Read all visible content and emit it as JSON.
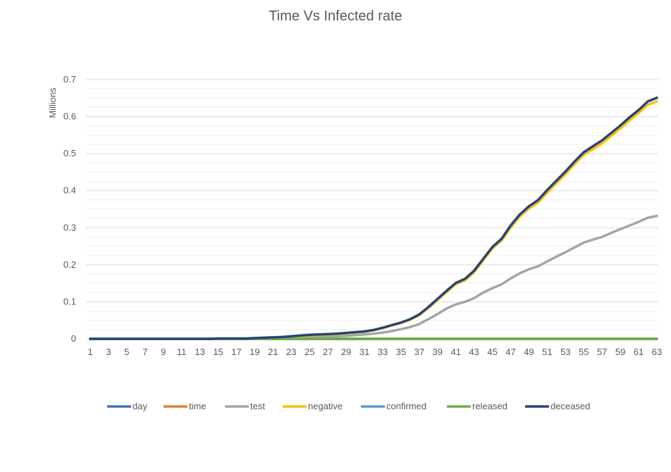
{
  "chart_data": {
    "type": "line",
    "title": "Time Vs Infected rate",
    "xlabel": "",
    "ylabel": "Millions",
    "ylim": [
      0,
      0.7
    ],
    "y_ticks": [
      "0",
      "0.1",
      "0.2",
      "0.3",
      "0.4",
      "0.5",
      "0.6",
      "0.7"
    ],
    "x_ticks": [
      "1",
      "3",
      "5",
      "7",
      "9",
      "11",
      "13",
      "15",
      "17",
      "19",
      "21",
      "23",
      "25",
      "27",
      "29",
      "31",
      "33",
      "35",
      "37",
      "39",
      "41",
      "43",
      "45",
      "47",
      "49",
      "51",
      "53",
      "55",
      "57",
      "59",
      "61",
      "63"
    ],
    "grid": true,
    "legend_position": "bottom",
    "x": [
      1,
      2,
      3,
      4,
      5,
      6,
      7,
      8,
      9,
      10,
      11,
      12,
      13,
      14,
      15,
      16,
      17,
      18,
      19,
      20,
      21,
      22,
      23,
      24,
      25,
      26,
      27,
      28,
      29,
      30,
      31,
      32,
      33,
      34,
      35,
      36,
      37,
      38,
      39,
      40,
      41,
      42,
      43,
      44,
      45,
      46,
      47,
      48,
      49,
      50,
      51,
      52,
      53,
      54,
      55,
      56,
      57,
      58,
      59,
      60,
      61,
      62,
      63
    ],
    "series": [
      {
        "name": "day",
        "color": "#4472c4",
        "values": [
          0,
          0,
          0,
          0,
          0,
          0,
          0,
          0,
          0,
          0,
          0,
          0,
          0,
          0,
          0,
          0,
          0,
          0,
          0,
          0,
          0,
          0,
          0,
          0,
          0,
          0,
          0,
          0,
          0,
          0,
          0,
          0,
          0,
          0,
          0,
          0,
          0,
          0,
          0,
          0,
          0,
          0,
          0,
          0,
          0,
          0,
          0,
          0,
          0,
          0,
          0,
          0,
          0,
          0,
          0,
          0,
          0,
          0,
          0,
          0,
          0,
          0,
          0
        ]
      },
      {
        "name": "time",
        "color": "#ed7d31",
        "values": [
          0,
          0,
          0,
          0,
          0,
          0,
          0,
          0,
          0,
          0,
          0,
          0,
          0,
          0,
          0,
          0,
          0,
          0,
          0,
          0,
          0,
          0,
          0,
          0,
          0,
          0,
          0,
          0,
          0,
          0,
          0,
          0,
          0,
          0,
          0,
          0,
          0,
          0,
          0,
          0,
          0,
          0,
          0,
          0,
          0,
          0,
          0,
          0,
          0,
          0,
          0,
          0,
          0,
          0,
          0,
          0,
          0,
          0,
          0,
          0,
          0,
          0,
          0
        ]
      },
      {
        "name": "test",
        "color": "#a5a5a5",
        "values": [
          0,
          0,
          0,
          0,
          0,
          0,
          0,
          0,
          0,
          0,
          0,
          0,
          0,
          0,
          0,
          0,
          0,
          0,
          0,
          0,
          0,
          0.001,
          0.002,
          0.003,
          0.004,
          0.005,
          0.006,
          0.007,
          0.008,
          0.01,
          0.012,
          0.014,
          0.017,
          0.021,
          0.026,
          0.032,
          0.04,
          0.053,
          0.067,
          0.082,
          0.093,
          0.1,
          0.11,
          0.125,
          0.137,
          0.147,
          0.163,
          0.177,
          0.188,
          0.196,
          0.209,
          0.222,
          0.234,
          0.247,
          0.26,
          0.268,
          0.275,
          0.286,
          0.296,
          0.306,
          0.316,
          0.327,
          0.332
        ]
      },
      {
        "name": "negative",
        "color": "#ffc000",
        "values": [
          0,
          0,
          0,
          0,
          0,
          0,
          0,
          0,
          0,
          0,
          0,
          0,
          0,
          0,
          0.001,
          0.001,
          0.001,
          0.001,
          0.002,
          0.003,
          0.004,
          0.005,
          0.006,
          0.008,
          0.01,
          0.011,
          0.012,
          0.013,
          0.015,
          0.017,
          0.019,
          0.023,
          0.029,
          0.036,
          0.043,
          0.052,
          0.064,
          0.083,
          0.105,
          0.126,
          0.148,
          0.158,
          0.18,
          0.212,
          0.244,
          0.265,
          0.3,
          0.33,
          0.352,
          0.368,
          0.395,
          0.42,
          0.445,
          0.472,
          0.497,
          0.512,
          0.528,
          0.548,
          0.568,
          0.59,
          0.61,
          0.632,
          0.641
        ]
      },
      {
        "name": "confirmed",
        "color": "#5b9bd5",
        "values": [
          0,
          0,
          0,
          0,
          0,
          0,
          0,
          0,
          0,
          0,
          0,
          0,
          0,
          0,
          0,
          0,
          0,
          0,
          0,
          0,
          0,
          0,
          0,
          0,
          0,
          0,
          0,
          0,
          0,
          0,
          0,
          0,
          0,
          0,
          0,
          0,
          0,
          0,
          0,
          0,
          0,
          0,
          0,
          0,
          0,
          0,
          0,
          0,
          0,
          0,
          0,
          0,
          0,
          0,
          0,
          0,
          0,
          0,
          0,
          0,
          0,
          0,
          0
        ]
      },
      {
        "name": "released",
        "color": "#70ad47",
        "values": [
          0,
          0,
          0,
          0,
          0,
          0,
          0,
          0,
          0,
          0,
          0,
          0,
          0,
          0,
          0,
          0,
          0,
          0,
          0,
          0,
          0,
          0,
          0,
          0,
          0,
          0,
          0,
          0,
          0,
          0,
          0,
          0,
          0,
          0,
          0,
          0,
          0,
          0,
          0,
          0,
          0,
          0,
          0,
          0,
          0,
          0,
          0,
          0,
          0,
          0,
          0,
          0,
          0,
          0,
          0,
          0,
          0,
          0,
          0,
          0,
          0,
          0,
          0
        ]
      },
      {
        "name": "deceased",
        "color": "#264478",
        "values": [
          0,
          0,
          0,
          0,
          0,
          0,
          0,
          0,
          0,
          0,
          0,
          0,
          0,
          0,
          0.001,
          0.001,
          0.001,
          0.001,
          0.002,
          0.003,
          0.004,
          0.005,
          0.007,
          0.009,
          0.011,
          0.012,
          0.013,
          0.014,
          0.016,
          0.018,
          0.02,
          0.024,
          0.03,
          0.037,
          0.044,
          0.053,
          0.066,
          0.086,
          0.108,
          0.13,
          0.151,
          0.162,
          0.184,
          0.216,
          0.248,
          0.27,
          0.306,
          0.336,
          0.358,
          0.375,
          0.402,
          0.427,
          0.452,
          0.479,
          0.504,
          0.52,
          0.536,
          0.556,
          0.576,
          0.598,
          0.618,
          0.641,
          0.651
        ]
      }
    ]
  }
}
